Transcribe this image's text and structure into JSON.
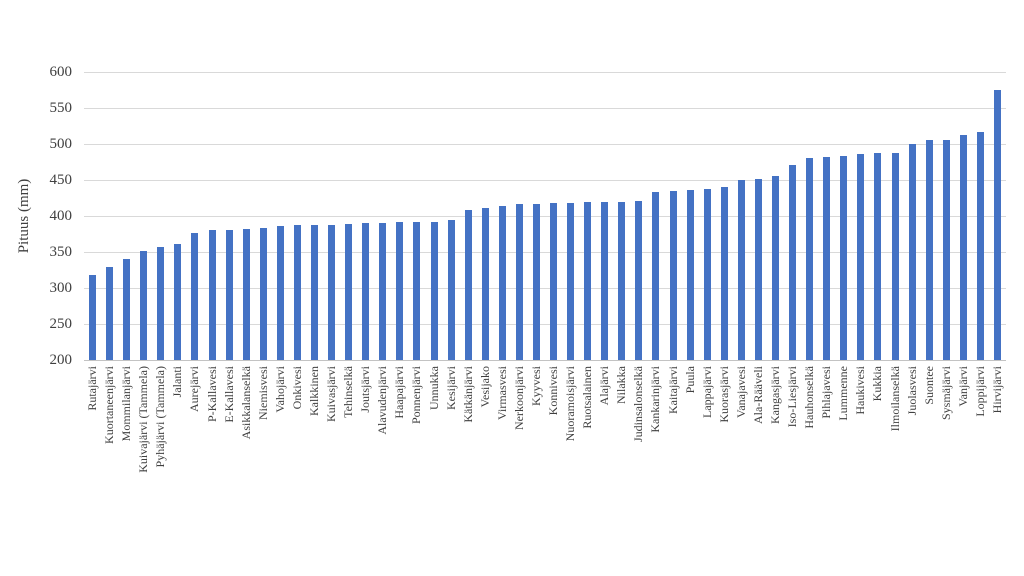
{
  "chart_data": {
    "type": "bar",
    "title": "",
    "xlabel": "",
    "ylabel": "Pituus (mm)",
    "ylim": [
      200,
      600
    ],
    "ytick_step": 50,
    "yticks": [
      200,
      250,
      300,
      350,
      400,
      450,
      500,
      550,
      600
    ],
    "grid": "horizontal gridlines on, no vertical gridlines",
    "legend": "none",
    "bar_color": "#4472C4",
    "gridline_color": "#D9D9D9",
    "axis_line_color": "#C3C3C3",
    "text_color": "#404040",
    "categories": [
      "Rutajärvi",
      "Kuortaneenjärvi",
      "Mommilanjärvi",
      "Kuivajärvi (Tammela)",
      "Pyhäjärvi (Tammela)",
      "Jalanti",
      "Aurejärvi",
      "P-Kallavesi",
      "E-Kallavesi",
      "Asikkalanselkä",
      "Niemisvesi",
      "Vahojärvi",
      "Onkivesi",
      "Kalkkinen",
      "Kuivasjärvi",
      "Tehinselkä",
      "Joutsjärvi",
      "Alavudenjärvi",
      "Haapajärvi",
      "Ponnenjärvi",
      "Unnukka",
      "Kesijärvi",
      "Kätkänjärvi",
      "Vesijako",
      "Virmasvesi",
      "Nerkoonjärvi",
      "Kyyvesi",
      "Konnivesi",
      "Nuoramoisjärvi",
      "Ruotsalainen",
      "Alajärvi",
      "Nilakka",
      "Judinsalonselkä",
      "Kankarinjärvi",
      "Kaitajärvi",
      "Puula",
      "Lappajärvi",
      "Kuorasjärvi",
      "Vanajavesi",
      "Ala-Rääveli",
      "Kangasjärvi",
      "Iso-Liesjärvi",
      "Hauhonselkä",
      "Pihlajavesi",
      "Lummenne",
      "Haukivesi",
      "Kukkia",
      "Ilmoilanselkä",
      "Juolasvesi",
      "Suontee",
      "Sysmäjärvi",
      "Vanjärvi",
      "Loppijärvi",
      "Hirvijärvi"
    ],
    "values": [
      318,
      329,
      340,
      352,
      357,
      361,
      376,
      380,
      381,
      382,
      383,
      386,
      387,
      388,
      388,
      389,
      390,
      390,
      391,
      391,
      392,
      394,
      409,
      411,
      414,
      416,
      417,
      418,
      418,
      419,
      419,
      420,
      421,
      434,
      435,
      436,
      438,
      440,
      450,
      452,
      455,
      471,
      481,
      482,
      483,
      486,
      487,
      488,
      500,
      505,
      506,
      513,
      516,
      575
    ]
  }
}
